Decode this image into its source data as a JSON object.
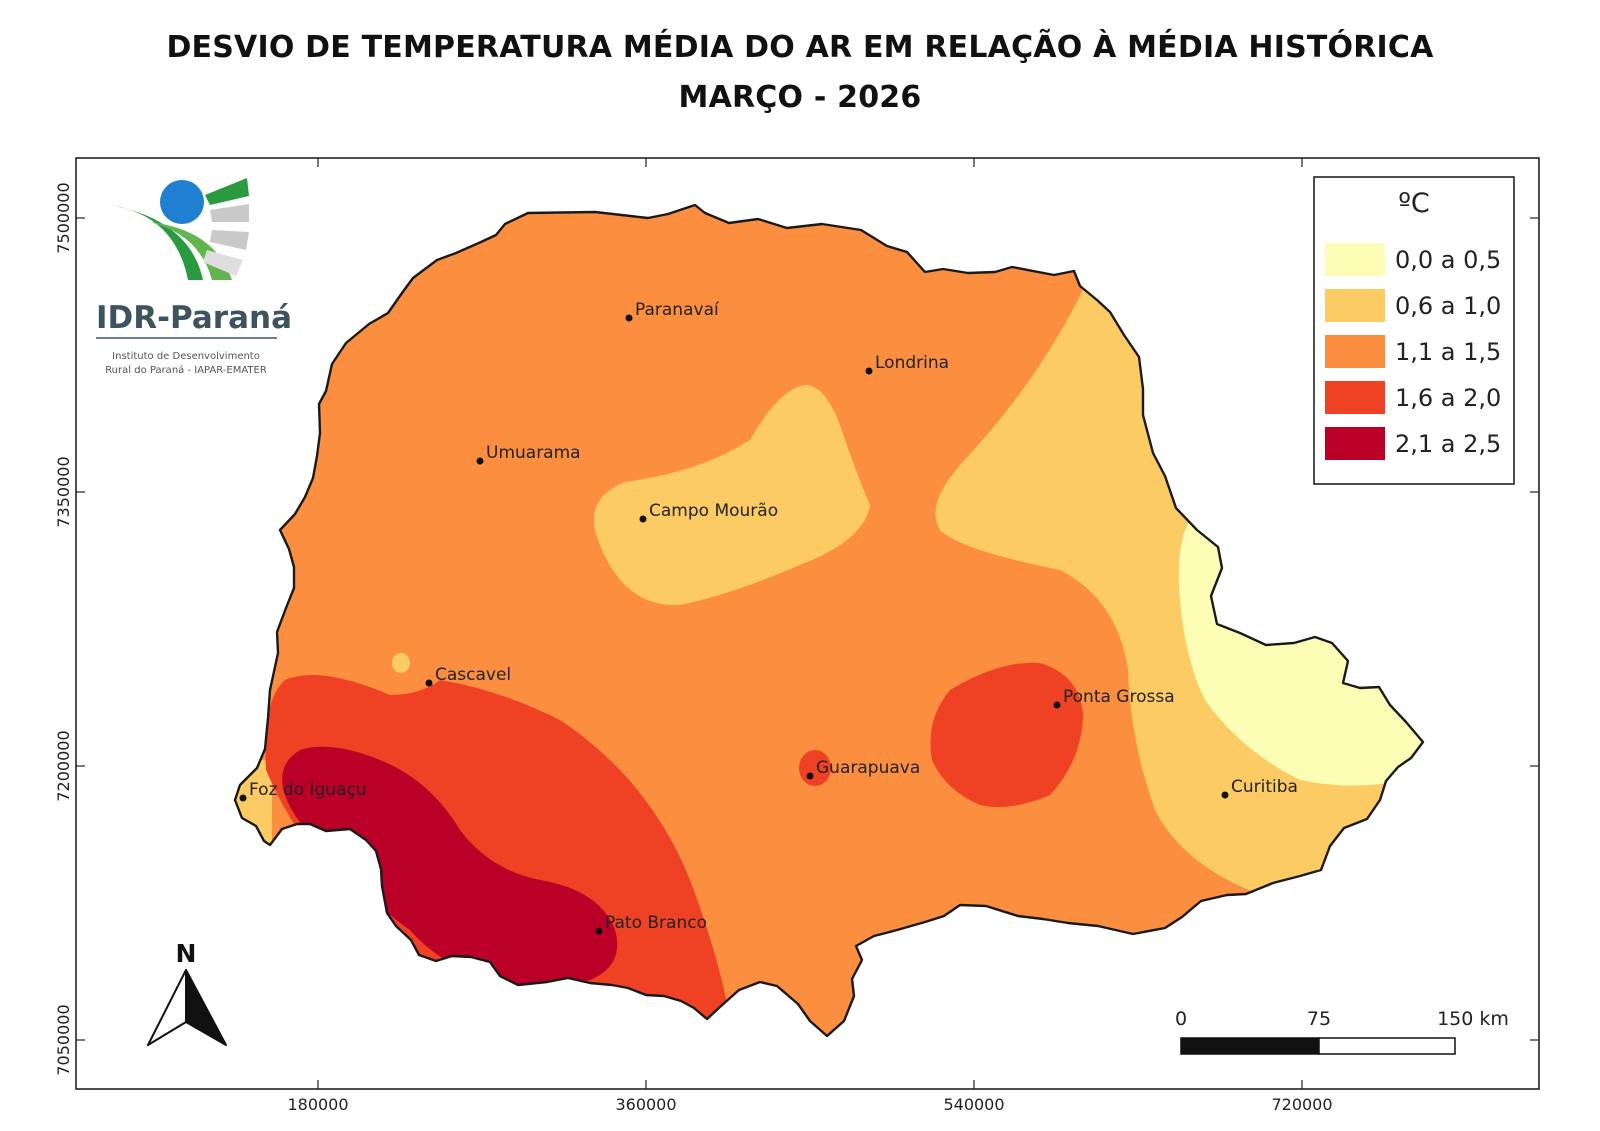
{
  "title": {
    "line1": "DESVIO DE TEMPERATURA MÉDIA DO AR EM RELAÇÃO À MÉDIA HISTÓRICA",
    "line2": "MARÇO - 2026"
  },
  "logo": {
    "name": "IDR-Paraná",
    "subtitle_line1": "Instituto de Desenvolvimento",
    "subtitle_line2": "Rural do Paraná - IAPAR-EMATER"
  },
  "legend": {
    "unit": "ºC",
    "classes": [
      {
        "label": "0,0 a 0,5",
        "color": "#fefdb5"
      },
      {
        "label": "0,6 a 1,0",
        "color": "#fdcb63"
      },
      {
        "label": "1,1 a 1,5",
        "color": "#fb8e3f"
      },
      {
        "label": "1,6 a 2,0",
        "color": "#ef4123"
      },
      {
        "label": "2,1 a 2,5",
        "color": "#bb0028"
      }
    ]
  },
  "cities": [
    {
      "name": "Paranavaí"
    },
    {
      "name": "Londrina"
    },
    {
      "name": "Umuarama"
    },
    {
      "name": "Campo Mourão"
    },
    {
      "name": "Cascavel"
    },
    {
      "name": "Ponta Grossa"
    },
    {
      "name": "Guarapuava"
    },
    {
      "name": "Foz do Iguaçu"
    },
    {
      "name": "Curitiba"
    },
    {
      "name": "Pato Branco"
    }
  ],
  "axes": {
    "x_ticks": [
      "180000",
      "360000",
      "540000",
      "720000"
    ],
    "y_ticks": [
      "7500000",
      "7350000",
      "7200000",
      "7050000"
    ]
  },
  "north_arrow": "N",
  "scale_bar": {
    "labels": [
      "0",
      "75",
      "150 km"
    ]
  },
  "colors": {
    "border": "#1a1a1a",
    "frame": "#222222"
  }
}
